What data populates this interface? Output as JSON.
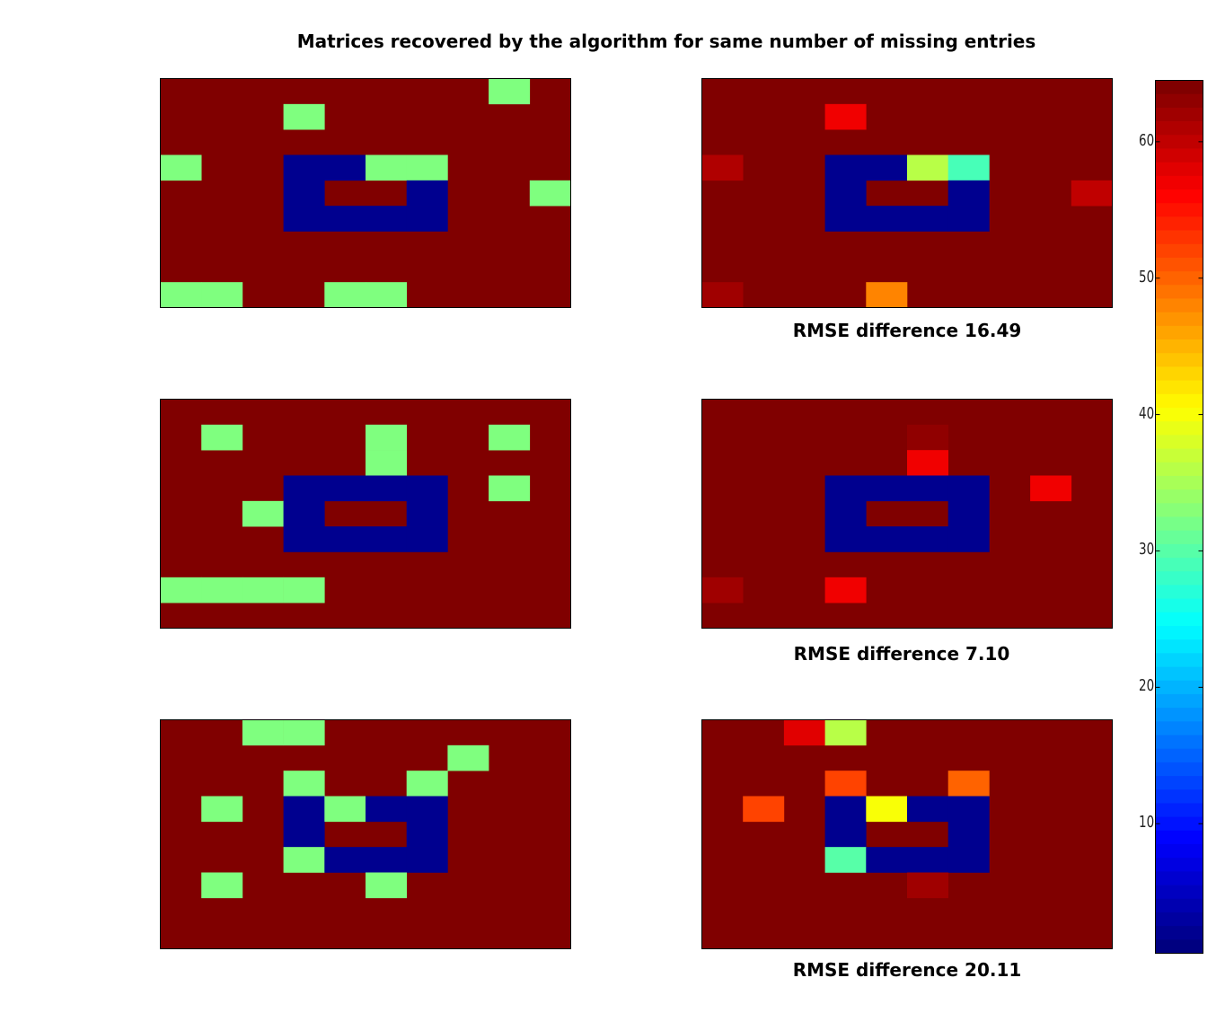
{
  "figure": {
    "title": "Matrices recovered by the algorithm for same number of missing entries"
  },
  "colors": {
    "background_high": "#800000",
    "low": "#00008f",
    "missing_marker": "#7fff7f"
  },
  "chart_data": [
    {
      "type": "heatmap",
      "panel": "row1-left",
      "rows": 9,
      "cols": 10,
      "base_value": 64,
      "cells": [
        {
          "r": 0,
          "c": 8,
          "v": 32.5
        },
        {
          "r": 1,
          "c": 3,
          "v": 32.5
        },
        {
          "r": 3,
          "c": 0,
          "v": 32.5
        },
        {
          "r": 3,
          "c": 3,
          "v": 1
        },
        {
          "r": 3,
          "c": 4,
          "v": 1
        },
        {
          "r": 3,
          "c": 5,
          "v": 32.5
        },
        {
          "r": 3,
          "c": 6,
          "v": 32.5
        },
        {
          "r": 4,
          "c": 3,
          "v": 1
        },
        {
          "r": 4,
          "c": 6,
          "v": 1
        },
        {
          "r": 4,
          "c": 9,
          "v": 32.5
        },
        {
          "r": 5,
          "c": 3,
          "v": 1
        },
        {
          "r": 5,
          "c": 4,
          "v": 1
        },
        {
          "r": 5,
          "c": 5,
          "v": 1
        },
        {
          "r": 5,
          "c": 6,
          "v": 1
        },
        {
          "r": 8,
          "c": 0,
          "v": 32.5
        },
        {
          "r": 8,
          "c": 1,
          "v": 32.5
        },
        {
          "r": 8,
          "c": 4,
          "v": 32.5
        },
        {
          "r": 8,
          "c": 5,
          "v": 32.5
        }
      ]
    },
    {
      "type": "heatmap",
      "panel": "row1-right",
      "rows": 9,
      "cols": 10,
      "base_value": 64,
      "caption": "RMSE difference 16.49",
      "cells": [
        {
          "r": 1,
          "c": 3,
          "v": 57
        },
        {
          "r": 3,
          "c": 0,
          "v": 61
        },
        {
          "r": 3,
          "c": 3,
          "v": 1
        },
        {
          "r": 3,
          "c": 4,
          "v": 1
        },
        {
          "r": 3,
          "c": 5,
          "v": 36
        },
        {
          "r": 3,
          "c": 6,
          "v": 29
        },
        {
          "r": 4,
          "c": 3,
          "v": 1
        },
        {
          "r": 4,
          "c": 6,
          "v": 1
        },
        {
          "r": 4,
          "c": 9,
          "v": 60
        },
        {
          "r": 5,
          "c": 3,
          "v": 1
        },
        {
          "r": 5,
          "c": 4,
          "v": 1
        },
        {
          "r": 5,
          "c": 5,
          "v": 1
        },
        {
          "r": 5,
          "c": 6,
          "v": 1
        },
        {
          "r": 8,
          "c": 0,
          "v": 62
        },
        {
          "r": 8,
          "c": 4,
          "v": 48
        }
      ]
    },
    {
      "type": "heatmap",
      "panel": "row2-left",
      "rows": 9,
      "cols": 10,
      "base_value": 64,
      "cells": [
        {
          "r": 1,
          "c": 1,
          "v": 32.5
        },
        {
          "r": 1,
          "c": 5,
          "v": 32.5
        },
        {
          "r": 1,
          "c": 8,
          "v": 32.5
        },
        {
          "r": 2,
          "c": 5,
          "v": 32.5
        },
        {
          "r": 3,
          "c": 3,
          "v": 1
        },
        {
          "r": 3,
          "c": 4,
          "v": 1
        },
        {
          "r": 3,
          "c": 5,
          "v": 1
        },
        {
          "r": 3,
          "c": 6,
          "v": 1
        },
        {
          "r": 3,
          "c": 8,
          "v": 32.5
        },
        {
          "r": 4,
          "c": 2,
          "v": 32.5
        },
        {
          "r": 4,
          "c": 3,
          "v": 1
        },
        {
          "r": 4,
          "c": 6,
          "v": 1
        },
        {
          "r": 5,
          "c": 3,
          "v": 1
        },
        {
          "r": 5,
          "c": 4,
          "v": 1
        },
        {
          "r": 5,
          "c": 5,
          "v": 1
        },
        {
          "r": 5,
          "c": 6,
          "v": 1
        },
        {
          "r": 7,
          "c": 0,
          "v": 32.5
        },
        {
          "r": 7,
          "c": 1,
          "v": 32.5
        },
        {
          "r": 7,
          "c": 2,
          "v": 32.5
        },
        {
          "r": 7,
          "c": 3,
          "v": 32.5
        }
      ]
    },
    {
      "type": "heatmap",
      "panel": "row2-right",
      "rows": 9,
      "cols": 10,
      "base_value": 64,
      "caption": "RMSE difference 7.10",
      "cells": [
        {
          "r": 1,
          "c": 5,
          "v": 63
        },
        {
          "r": 2,
          "c": 5,
          "v": 57
        },
        {
          "r": 3,
          "c": 3,
          "v": 1
        },
        {
          "r": 3,
          "c": 4,
          "v": 1
        },
        {
          "r": 3,
          "c": 5,
          "v": 1
        },
        {
          "r": 3,
          "c": 6,
          "v": 1
        },
        {
          "r": 3,
          "c": 8,
          "v": 57
        },
        {
          "r": 4,
          "c": 3,
          "v": 1
        },
        {
          "r": 4,
          "c": 6,
          "v": 1
        },
        {
          "r": 5,
          "c": 3,
          "v": 1
        },
        {
          "r": 5,
          "c": 4,
          "v": 1
        },
        {
          "r": 5,
          "c": 5,
          "v": 1
        },
        {
          "r": 5,
          "c": 6,
          "v": 1
        },
        {
          "r": 7,
          "c": 0,
          "v": 62
        },
        {
          "r": 7,
          "c": 3,
          "v": 57
        }
      ]
    },
    {
      "type": "heatmap",
      "panel": "row3-left",
      "rows": 9,
      "cols": 10,
      "base_value": 64,
      "cells": [
        {
          "r": 0,
          "c": 2,
          "v": 32.5
        },
        {
          "r": 0,
          "c": 3,
          "v": 32.5
        },
        {
          "r": 1,
          "c": 7,
          "v": 32.5
        },
        {
          "r": 2,
          "c": 3,
          "v": 32.5
        },
        {
          "r": 2,
          "c": 6,
          "v": 32.5
        },
        {
          "r": 3,
          "c": 1,
          "v": 32.5
        },
        {
          "r": 3,
          "c": 3,
          "v": 1
        },
        {
          "r": 3,
          "c": 4,
          "v": 32.5
        },
        {
          "r": 3,
          "c": 5,
          "v": 1
        },
        {
          "r": 3,
          "c": 6,
          "v": 1
        },
        {
          "r": 4,
          "c": 3,
          "v": 1
        },
        {
          "r": 4,
          "c": 6,
          "v": 1
        },
        {
          "r": 5,
          "c": 3,
          "v": 32.5
        },
        {
          "r": 5,
          "c": 4,
          "v": 1
        },
        {
          "r": 5,
          "c": 5,
          "v": 1
        },
        {
          "r": 5,
          "c": 6,
          "v": 1
        },
        {
          "r": 6,
          "c": 1,
          "v": 32.5
        },
        {
          "r": 6,
          "c": 5,
          "v": 32.5
        }
      ]
    },
    {
      "type": "heatmap",
      "panel": "row3-right",
      "rows": 9,
      "cols": 10,
      "base_value": 64,
      "caption": "RMSE difference 20.11",
      "cells": [
        {
          "r": 0,
          "c": 2,
          "v": 58
        },
        {
          "r": 0,
          "c": 3,
          "v": 36
        },
        {
          "r": 2,
          "c": 3,
          "v": 52
        },
        {
          "r": 2,
          "c": 6,
          "v": 50
        },
        {
          "r": 3,
          "c": 1,
          "v": 52
        },
        {
          "r": 3,
          "c": 3,
          "v": 1
        },
        {
          "r": 3,
          "c": 4,
          "v": 40
        },
        {
          "r": 3,
          "c": 5,
          "v": 1
        },
        {
          "r": 3,
          "c": 6,
          "v": 1
        },
        {
          "r": 4,
          "c": 3,
          "v": 1
        },
        {
          "r": 4,
          "c": 6,
          "v": 1
        },
        {
          "r": 5,
          "c": 3,
          "v": 30
        },
        {
          "r": 5,
          "c": 4,
          "v": 1
        },
        {
          "r": 5,
          "c": 5,
          "v": 1
        },
        {
          "r": 5,
          "c": 6,
          "v": 1
        },
        {
          "r": 6,
          "c": 5,
          "v": 62
        }
      ]
    },
    {
      "type": "colorbar",
      "colormap": "jet",
      "range": [
        1,
        64
      ],
      "ticks": [
        10,
        20,
        30,
        40,
        50,
        60
      ],
      "tick_labels": [
        "10",
        "20",
        "30",
        "40",
        "50",
        "60"
      ]
    }
  ]
}
